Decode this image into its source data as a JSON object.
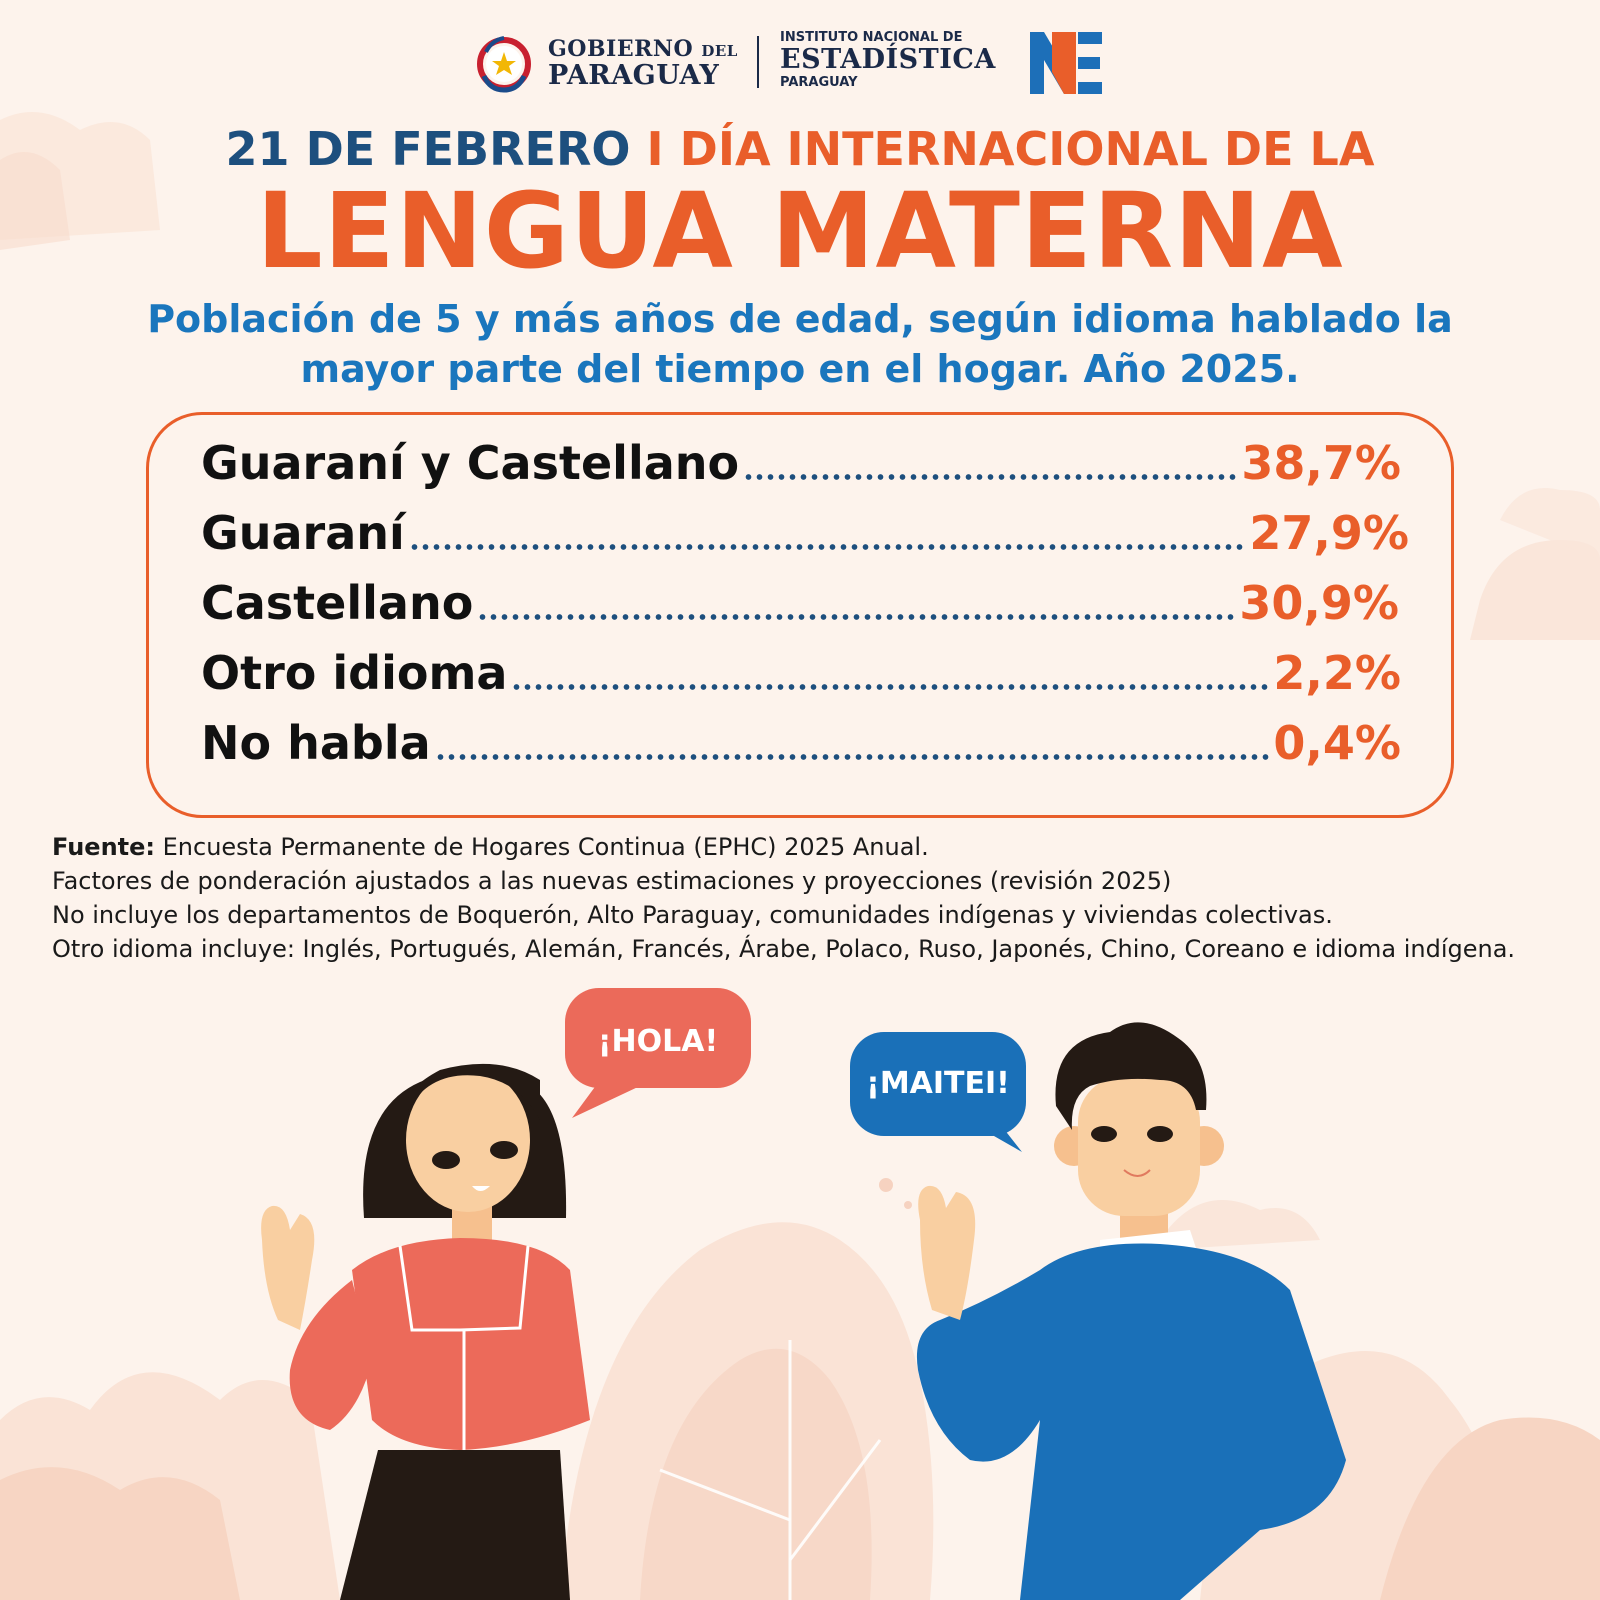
{
  "header": {
    "gobierno_line1": "GOBIERNO",
    "gobierno_del": "DEL",
    "gobierno_line2": "PARAGUAY",
    "ine_line1": "INSTITUTO NACIONAL DE",
    "ine_line2": "ESTADÍSTICA",
    "ine_line3": "PARAGUAY"
  },
  "title": {
    "date": "21 DE FEBRERO",
    "separator": "I",
    "event": "DÍA INTERNACIONAL DE LA",
    "main": "LENGUA MATERNA",
    "subtitle_line1": "Población de 5 y más años de edad, según idioma hablado la",
    "subtitle_line2": "mayor parte del tiempo en el hogar. Año 2025."
  },
  "stats": [
    {
      "label": "Guaraní y Castellano",
      "value": "38,7%"
    },
    {
      "label": "Guaraní",
      "value": "27,9%"
    },
    {
      "label": "Castellano",
      "value": "30,9%"
    },
    {
      "label": "Otro idioma",
      "value": "2,2%"
    },
    {
      "label": "No habla",
      "value": "0,4%"
    }
  ],
  "notes": {
    "source_label": "Fuente:",
    "source_text": " Encuesta Permanente de Hogares Continua (EPHC) 2025 Anual.",
    "line2": "Factores de ponderación ajustados a las nuevas estimaciones y proyecciones (revisión 2025)",
    "line3": "No incluye los departamentos de Boquerón, Alto Paraguay, comunidades indígenas y viviendas colectivas.",
    "line4": "Otro idioma incluye: Inglés, Portugués, Alemán, Francés, Árabe, Polaco, Ruso, Japonés, Chino, Coreano e idioma indígena."
  },
  "bubbles": {
    "woman": "¡HOLA!",
    "man": "¡MAITEI!"
  },
  "colors": {
    "orange": "#e95e2a",
    "navy": "#1d4f7e",
    "blue": "#1a76bd",
    "background": "#fdf3ec"
  }
}
